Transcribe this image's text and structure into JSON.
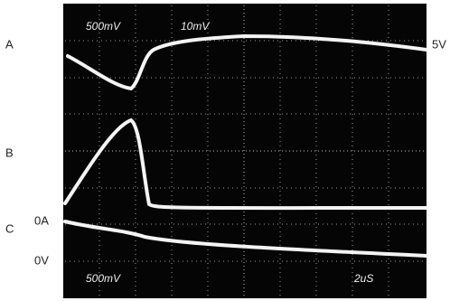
{
  "channels": {
    "a": "A",
    "b": "B",
    "c": "C"
  },
  "levels": {
    "top_right": "5V",
    "current_zero": "0A",
    "voltage_zero": "0V"
  },
  "scope": {
    "top_left": "500mV",
    "top_center": "10mV",
    "bottom_left": "500mV",
    "time_base": "2uS"
  }
}
